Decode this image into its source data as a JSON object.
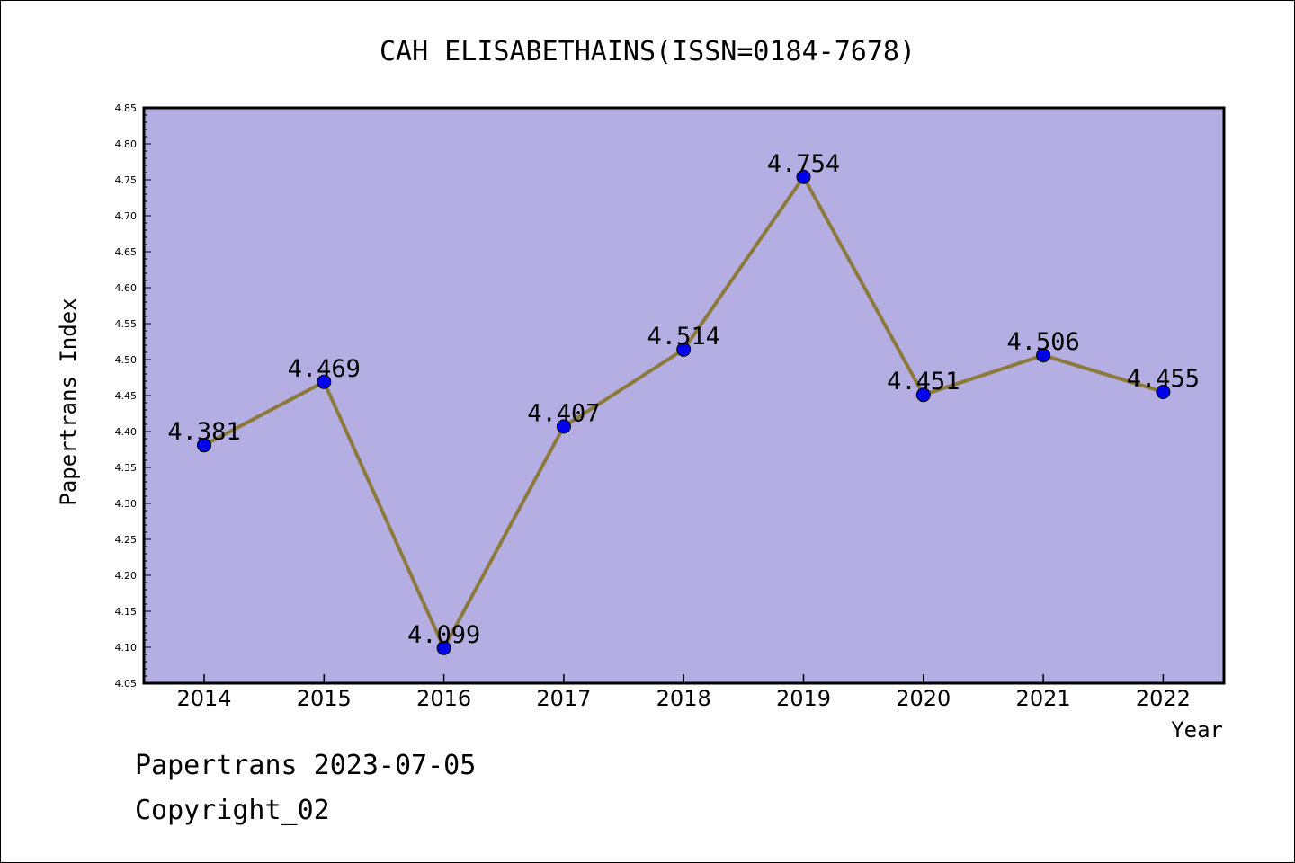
{
  "chart_data": {
    "type": "line",
    "title": "CAH ELISABETHAINS(ISSN=0184-7678)",
    "xlabel": "Year",
    "ylabel": "Papertrans Index",
    "categories": [
      "2014",
      "2015",
      "2016",
      "2017",
      "2018",
      "2019",
      "2020",
      "2021",
      "2022"
    ],
    "values": [
      4.381,
      4.469,
      4.099,
      4.407,
      4.514,
      4.754,
      4.451,
      4.506,
      4.455
    ],
    "data_labels": [
      "4.381",
      "4.469",
      "4.099",
      "4.407",
      "4.514",
      "4.754",
      "4.451",
      "4.506",
      "4.455"
    ],
    "ylim": [
      4.05,
      4.85
    ],
    "yticks": [
      "4.05",
      "4.10",
      "4.15",
      "4.20",
      "4.25",
      "4.30",
      "4.35",
      "4.40",
      "4.45",
      "4.50",
      "4.55",
      "4.60",
      "4.65",
      "4.70",
      "4.75",
      "4.80",
      "4.85"
    ],
    "grid": false,
    "colors": {
      "plot_background": "#b5aee2",
      "line": "#8b7a3c",
      "marker": "#0000ee"
    }
  },
  "footer": {
    "line1": "Papertrans 2023-07-05",
    "line2": "Copyright_02"
  }
}
